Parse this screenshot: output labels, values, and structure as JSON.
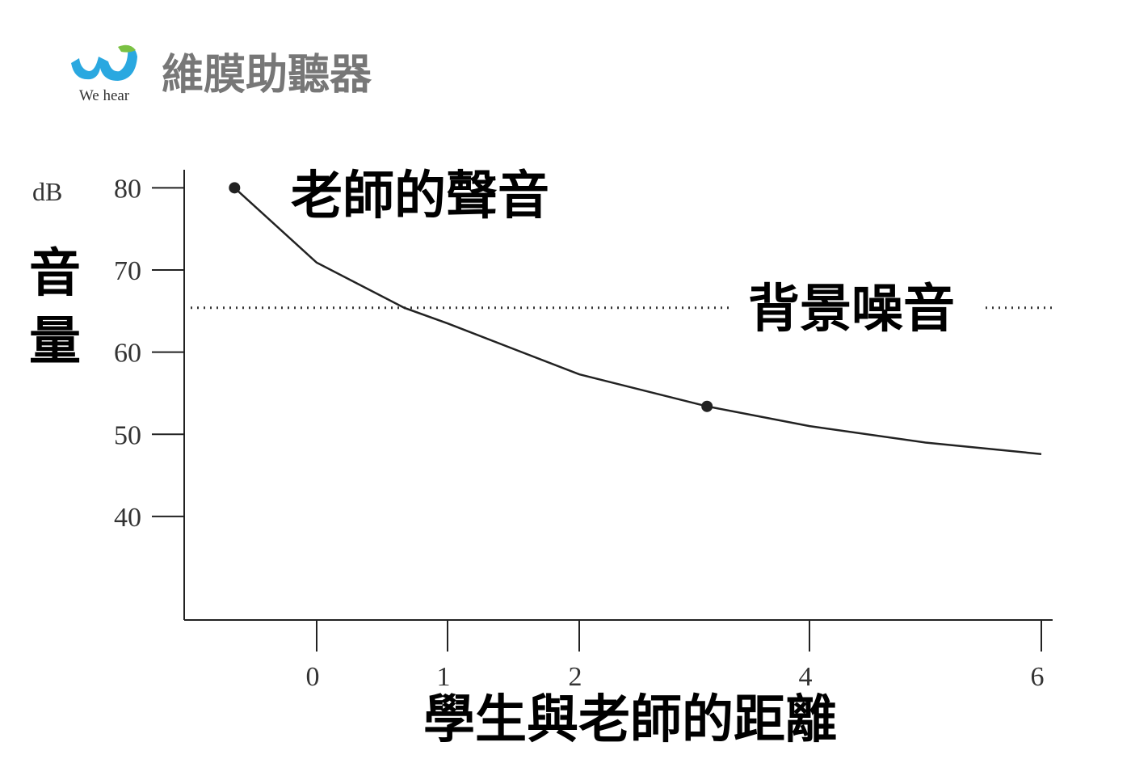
{
  "header": {
    "logo_text": "We hear",
    "brand": "維膜助聽器"
  },
  "chart_data": {
    "type": "line",
    "y_unit": "dB",
    "y_label": "音量",
    "x_label": "學生與老師的距離",
    "annotation": "老師的聲音",
    "reference_line": {
      "label": "背景噪音",
      "value": 65.4
    },
    "x": [
      -0.62,
      0,
      0.67,
      1,
      2,
      3.11,
      4,
      5,
      6
    ],
    "series": [
      {
        "color": "#222222",
        "values": [
          80,
          70.9,
          65.4,
          63.5,
          57.3,
          53.4,
          51.0,
          49.0,
          47.6
        ]
      }
    ],
    "markers": {
      "x": [
        -0.62,
        3.11
      ],
      "values": [
        80,
        53.4
      ],
      "color": "#222222"
    },
    "xlim": [
      -1,
      6.05
    ],
    "xticks": [
      0,
      1,
      2,
      4,
      6
    ],
    "ylim": [
      27.4,
      82.2
    ],
    "yticks": [
      40,
      50,
      60,
      70,
      80
    ]
  }
}
